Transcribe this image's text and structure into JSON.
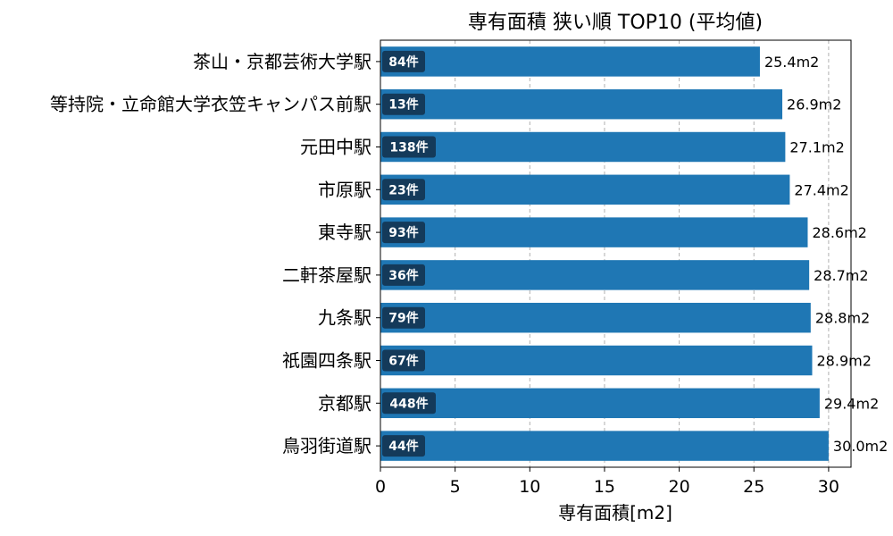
{
  "chart_data": {
    "type": "bar",
    "orientation": "horizontal",
    "title": "専有面積 狭い順 TOP10 (平均値)",
    "xlabel": "専有面積[m2]",
    "ylabel": "",
    "xlim": [
      0,
      31.5
    ],
    "xticks": [
      0,
      5,
      10,
      15,
      20,
      25,
      30
    ],
    "grid": "x-dashed",
    "categories": [
      "茶山・京都芸術大学駅",
      "等持院・立命館大学衣笠キャンパス前駅",
      "元田中駅",
      "市原駅",
      "東寺駅",
      "二軒茶屋駅",
      "九条駅",
      "祇園四条駅",
      "京都駅",
      "鳥羽街道駅"
    ],
    "values": [
      25.4,
      26.9,
      27.1,
      27.4,
      28.6,
      28.7,
      28.8,
      28.9,
      29.4,
      30.0
    ],
    "value_labels": [
      "25.4m2",
      "26.9m2",
      "27.1m2",
      "27.4m2",
      "28.6m2",
      "28.7m2",
      "28.8m2",
      "28.9m2",
      "29.4m2",
      "30.0m2"
    ],
    "count_labels": [
      "84件",
      "13件",
      "138件",
      "23件",
      "93件",
      "36件",
      "79件",
      "67件",
      "448件",
      "44件"
    ],
    "colors": {
      "bar": "#1f77b4",
      "badge": "#143a5a",
      "grid": "#b0b0b0"
    }
  }
}
